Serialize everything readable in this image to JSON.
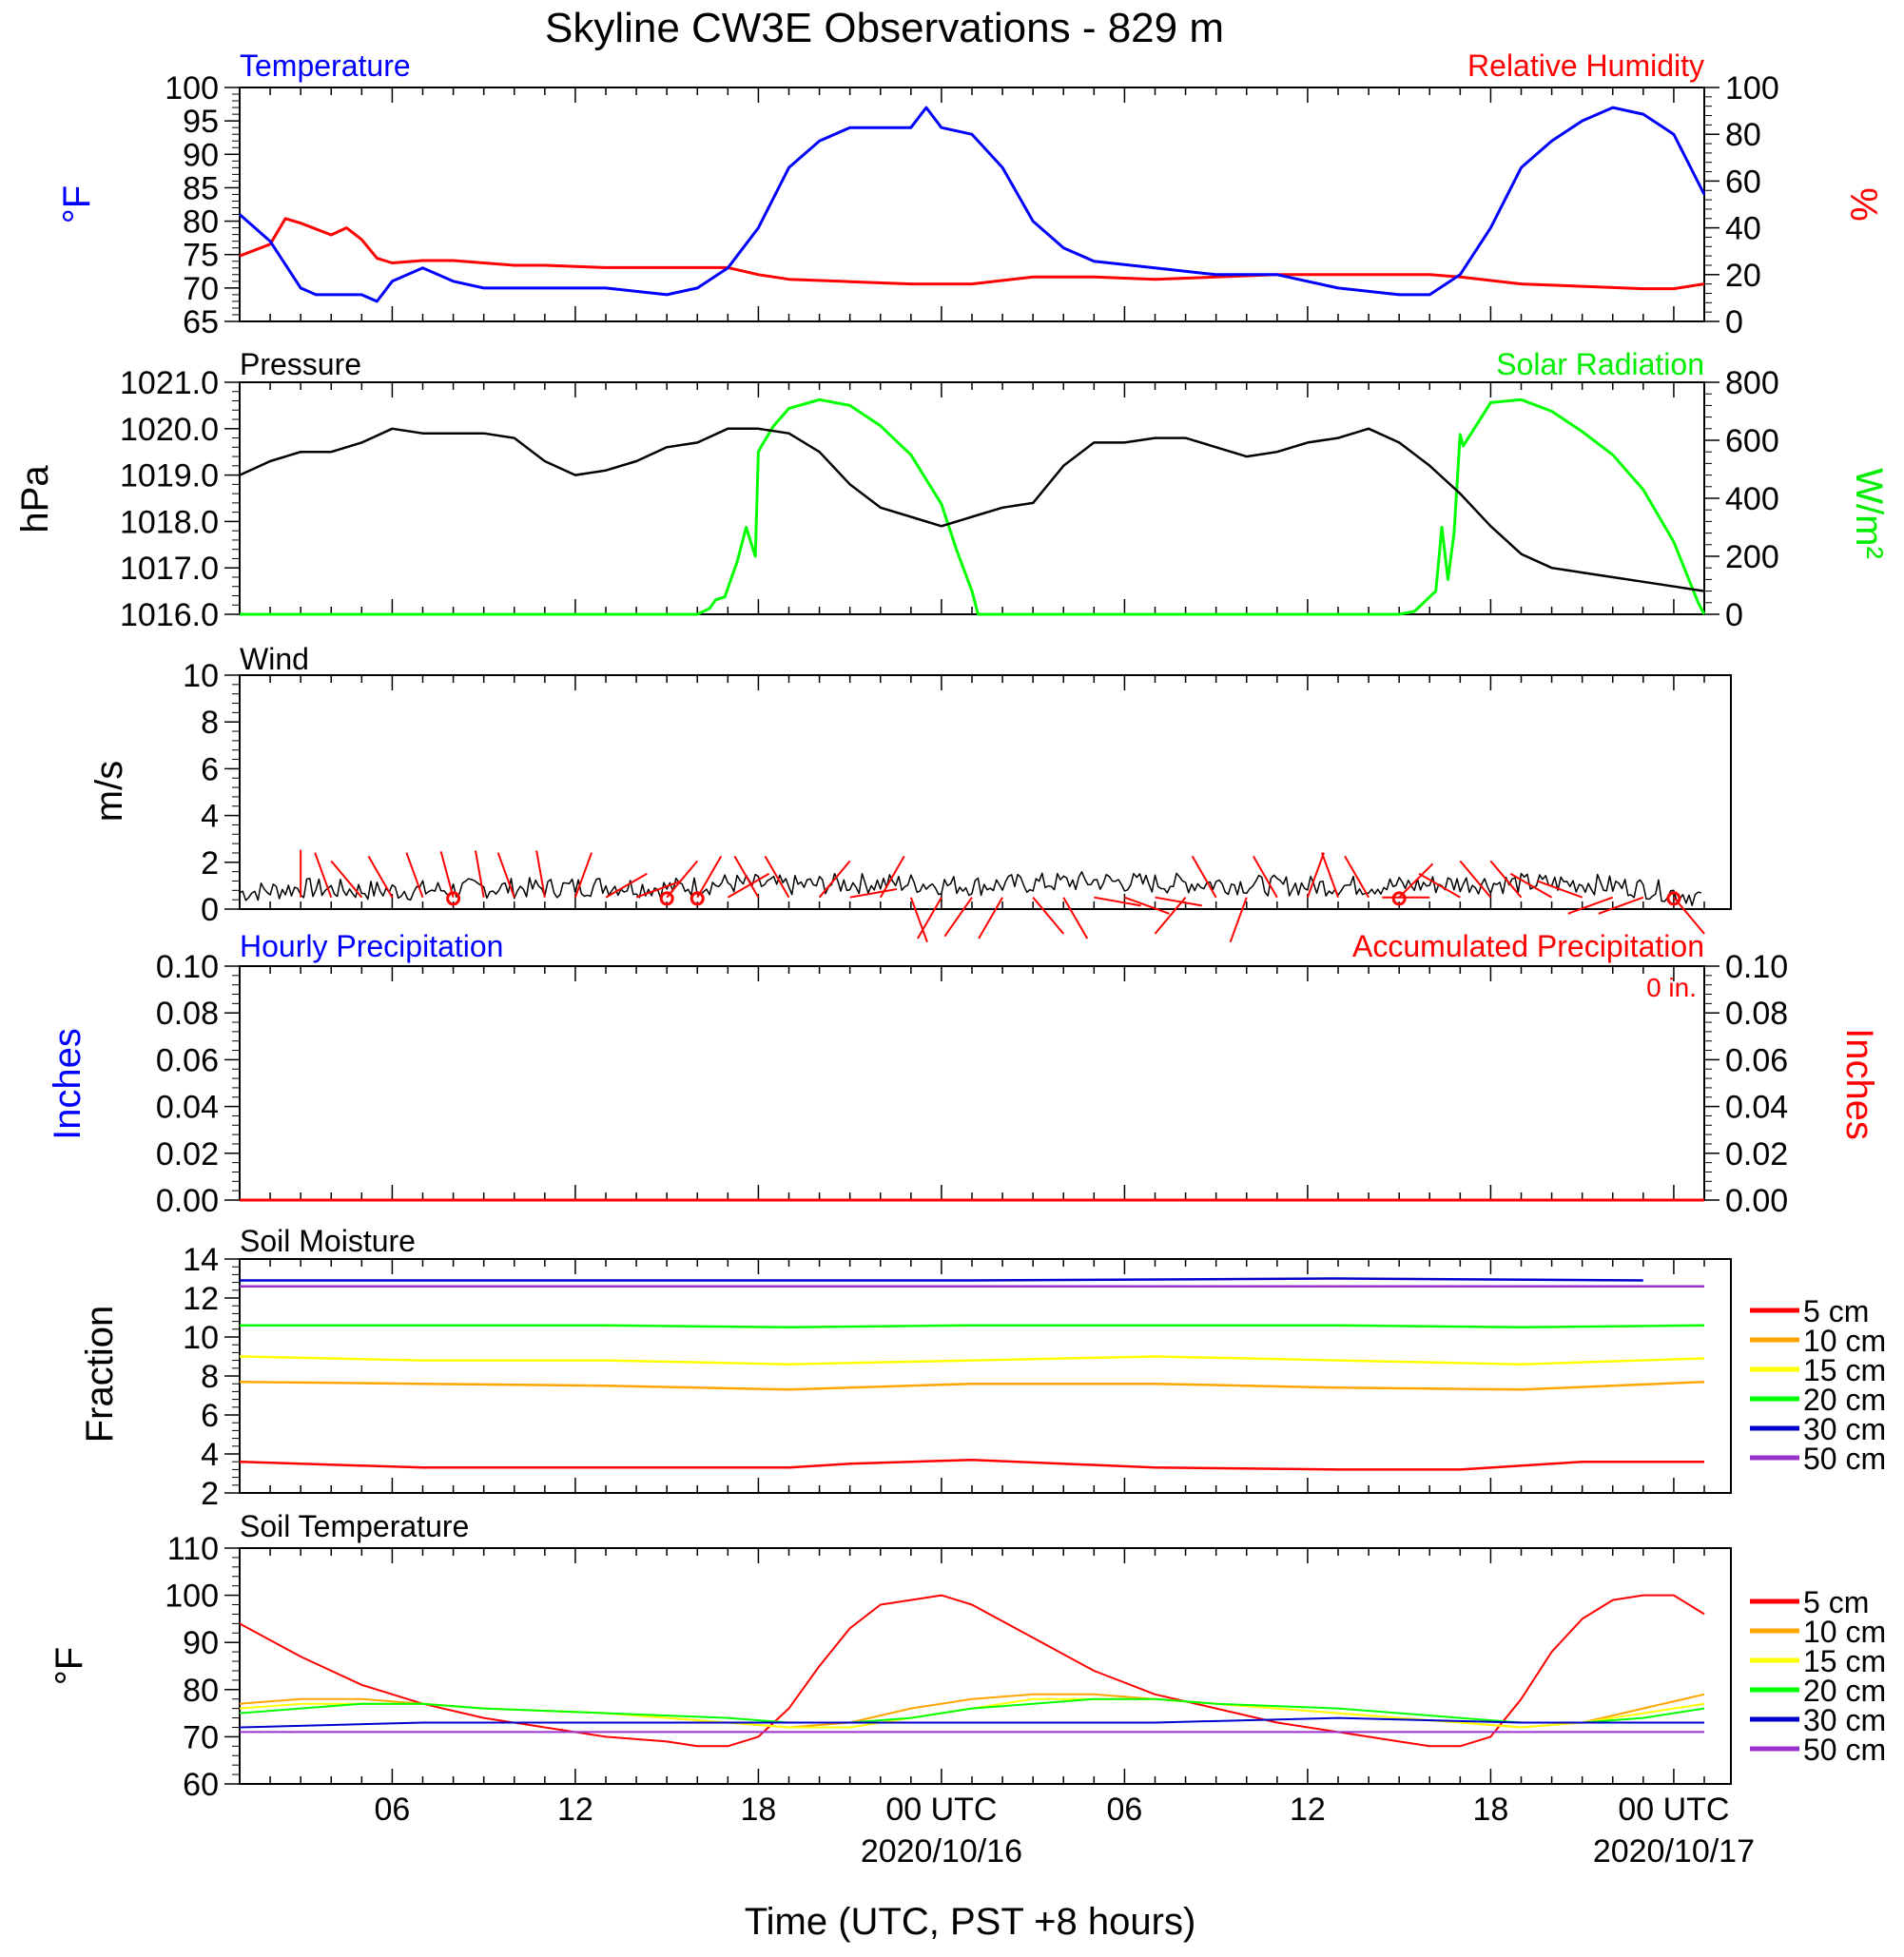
{
  "title": "Skyline CW3E Observations - 829 m",
  "x_axis": {
    "tick_labels": [
      "06",
      "12",
      "18",
      "00 UTC",
      "06",
      "12",
      "18",
      "00 UTC"
    ],
    "date_labels": [
      "2020/10/16",
      "2020/10/17"
    ],
    "label": "Time (UTC, PST +8 hours)"
  },
  "colors": {
    "temperature": "#0000ff",
    "humidity": "#ff0000",
    "pressure": "#000000",
    "solar": "#00ff00",
    "wind_speed": "#000000",
    "wind_barb": "#ff0000",
    "5 cm": "#ff0000",
    "10 cm": "#ffa500",
    "15 cm": "#ffff00",
    "20 cm": "#00ff00",
    "30 cm": "#0000cd",
    "50 cm": "#9932cc"
  },
  "panels": {
    "temp": {
      "left_title": "Temperature",
      "right_title": "Relative Humidity",
      "left_unit": "°F",
      "right_unit": "%",
      "left_ticks": [
        "100",
        "95",
        "90",
        "85",
        "80",
        "75",
        "70",
        "65"
      ],
      "right_ticks": [
        "100",
        "80",
        "60",
        "40",
        "20",
        "0"
      ]
    },
    "press": {
      "left_title": "Pressure",
      "right_title": "Solar Radiation",
      "left_unit": "hPa",
      "right_unit": "W/m²",
      "left_ticks": [
        "1021.0",
        "1020.0",
        "1019.0",
        "1018.0",
        "1017.0",
        "1016.0"
      ],
      "right_ticks": [
        "800",
        "600",
        "400",
        "200",
        "0"
      ]
    },
    "wind": {
      "left_title": "Wind",
      "left_unit": "m/s",
      "left_ticks": [
        "10",
        "8",
        "6",
        "4",
        "2",
        "0"
      ]
    },
    "precip": {
      "left_title": "Hourly Precipitation",
      "right_title": "Accumulated Precipitation",
      "total": "0 in.",
      "left_unit": "Inches",
      "right_unit": "Inches",
      "left_ticks": [
        "0.10",
        "0.08",
        "0.06",
        "0.04",
        "0.02",
        "0.00"
      ],
      "right_ticks": [
        "0.10",
        "0.08",
        "0.06",
        "0.04",
        "0.02",
        "0.00"
      ]
    },
    "soilm": {
      "left_title": "Soil Moisture",
      "left_unit": "Fraction",
      "left_ticks": [
        "14",
        "12",
        "10",
        "8",
        "6",
        "4",
        "2"
      ]
    },
    "soilt": {
      "left_title": "Soil Temperature",
      "left_unit": "°F",
      "left_ticks": [
        "110",
        "100",
        "90",
        "80",
        "70",
        "60"
      ]
    }
  },
  "legend": [
    "5 cm",
    "10 cm",
    "15 cm",
    "20 cm",
    "30 cm",
    "50 cm"
  ],
  "chart_data": [
    {
      "type": "line",
      "panel": "temp",
      "x_hours_since_2020-10-15T01UTC_note": "hours",
      "x_range": [
        0,
        48
      ],
      "ylim": [
        65,
        100
      ],
      "y2lim": [
        0,
        100
      ],
      "series": [
        {
          "name": "Temperature",
          "axis": "left",
          "x": [
            0,
            1,
            2,
            2.5,
            3,
            4,
            4.5,
            5,
            6,
            7,
            8,
            9,
            10,
            12,
            14,
            15,
            16,
            17,
            18,
            19,
            20,
            21,
            22,
            22.5,
            23,
            24,
            25,
            26,
            27,
            28,
            30,
            32,
            34,
            36,
            38,
            39,
            40,
            41,
            42,
            43,
            44,
            45,
            46,
            47,
            48
          ],
          "y": [
            81,
            77,
            70,
            69,
            69,
            69,
            68,
            71,
            73,
            71,
            70,
            70,
            70,
            70,
            69,
            70,
            73,
            79,
            88,
            92,
            94,
            94,
            94,
            97,
            94,
            93,
            88,
            80,
            76,
            74,
            73,
            72,
            72,
            70,
            69,
            69,
            72,
            79,
            88,
            92,
            95,
            97,
            96,
            93,
            84
          ]
        },
        {
          "name": "Relative Humidity",
          "axis": "right",
          "x": [
            0,
            1,
            1.5,
            2,
            3,
            3.5,
            4,
            4.5,
            5,
            6,
            7,
            8,
            9,
            10,
            12,
            14,
            15,
            16,
            17,
            18,
            20,
            22,
            24,
            26,
            28,
            30,
            32,
            34,
            36,
            38,
            39,
            40,
            42,
            44,
            46,
            47,
            48
          ],
          "y": [
            28,
            33,
            44,
            42,
            37,
            40,
            35,
            27,
            25,
            26,
            26,
            25,
            24,
            24,
            23,
            23,
            23,
            23,
            20,
            18,
            17,
            16,
            16,
            19,
            19,
            18,
            19,
            20,
            20,
            20,
            20,
            19,
            16,
            15,
            14,
            14,
            16
          ]
        }
      ]
    },
    {
      "type": "line",
      "panel": "press",
      "x_range": [
        0,
        48
      ],
      "ylim": [
        1016.0,
        1021.0
      ],
      "y2lim": [
        0,
        800
      ],
      "series": [
        {
          "name": "Pressure",
          "axis": "left",
          "x": [
            0,
            1,
            2,
            3,
            4,
            5,
            6,
            7,
            8,
            9,
            10,
            11,
            12,
            13,
            14,
            15,
            16,
            17,
            18,
            19,
            20,
            21,
            22,
            23,
            24,
            25,
            26,
            27,
            28,
            29,
            30,
            31,
            32,
            33,
            34,
            35,
            36,
            37,
            38,
            39,
            40,
            41,
            42,
            43,
            44,
            45,
            46,
            47,
            48
          ],
          "y": [
            1019.0,
            1019.3,
            1019.5,
            1019.5,
            1019.7,
            1020.0,
            1019.9,
            1019.9,
            1019.9,
            1019.8,
            1019.3,
            1019.0,
            1019.1,
            1019.3,
            1019.6,
            1019.7,
            1020.0,
            1020.0,
            1019.9,
            1019.5,
            1018.8,
            1018.3,
            1018.1,
            1017.9,
            1018.1,
            1018.3,
            1018.4,
            1019.2,
            1019.7,
            1019.7,
            1019.8,
            1019.8,
            1019.6,
            1019.4,
            1019.5,
            1019.7,
            1019.8,
            1020.0,
            1019.7,
            1019.2,
            1018.6,
            1017.9,
            1017.3,
            1017.0,
            1016.9,
            1016.8,
            1016.7,
            1016.6,
            1016.5
          ]
        },
        {
          "name": "Solar Radiation",
          "axis": "right",
          "x": [
            0,
            8,
            12,
            14,
            15,
            15.4,
            15.6,
            15.9,
            16.1,
            16.3,
            16.6,
            16.9,
            17,
            17.1,
            17.5,
            18,
            19,
            20,
            21,
            22,
            23,
            23.5,
            24,
            24.2,
            25,
            28,
            32,
            36,
            38,
            38.5,
            39.2,
            39.4,
            39.6,
            39.8,
            40,
            40.1,
            41,
            42,
            43,
            44,
            45,
            46,
            47,
            47.8,
            48
          ],
          "y": [
            0,
            0,
            0,
            0,
            0,
            20,
            50,
            60,
            120,
            180,
            300,
            200,
            560,
            580,
            650,
            710,
            740,
            720,
            650,
            550,
            380,
            220,
            80,
            0,
            0,
            0,
            0,
            0,
            0,
            10,
            80,
            300,
            120,
            280,
            620,
            580,
            730,
            740,
            700,
            630,
            550,
            430,
            250,
            40,
            0
          ]
        }
      ]
    },
    {
      "type": "line",
      "panel": "wind",
      "x_range": [
        0,
        48
      ],
      "ylim": [
        0,
        10
      ],
      "series": [
        {
          "name": "Wind speed",
          "x": [
            0,
            2,
            4,
            6,
            8,
            10,
            12,
            14,
            16,
            18,
            20,
            22,
            24,
            26,
            28,
            30,
            32,
            34,
            36,
            38,
            40,
            42,
            44,
            46,
            48
          ],
          "y": [
            0.7,
            0.9,
            0.8,
            0.8,
            0.9,
            0.9,
            1.0,
            0.9,
            1.1,
            1.0,
            1.1,
            1.1,
            1.0,
            1.1,
            1.2,
            1.1,
            1.1,
            1.0,
            1.0,
            1.0,
            1.1,
            1.1,
            1.1,
            0.9,
            0.5
          ]
        }
      ],
      "barbs": {
        "x": [
          2,
          3,
          4,
          5,
          6,
          7,
          8,
          9,
          10,
          11,
          12,
          13,
          14,
          15,
          16,
          17,
          18,
          19,
          20,
          21,
          22,
          23,
          24,
          25,
          26,
          27,
          28,
          29,
          30,
          31,
          32,
          33,
          34,
          35,
          36,
          37,
          38,
          39,
          40,
          41,
          42,
          43,
          44,
          45,
          46,
          47
        ],
        "dir_deg": [
          0,
          340,
          320,
          330,
          340,
          345,
          350,
          340,
          350,
          20,
          60,
          70,
          40,
          30,
          60,
          330,
          330,
          40,
          80,
          30,
          160,
          210,
          215,
          210,
          140,
          150,
          100,
          110,
          100,
          220,
          330,
          200,
          330,
          20,
          340,
          330,
          45,
          270,
          300,
          320,
          320,
          300,
          290,
          250,
          250,
          140
        ],
        "calm_x": [
          7,
          14,
          15,
          38,
          47
        ]
      }
    },
    {
      "type": "line",
      "panel": "precip",
      "x_range": [
        0,
        48
      ],
      "ylim": [
        0.0,
        0.1
      ],
      "series": [
        {
          "name": "Hourly Precipitation",
          "x": [
            0,
            48
          ],
          "y": [
            0.0,
            0.0
          ]
        },
        {
          "name": "Accumulated Precipitation",
          "x": [
            0,
            48
          ],
          "y": [
            0.0,
            0.0
          ]
        }
      ]
    },
    {
      "type": "line",
      "panel": "soilm",
      "x_range": [
        0,
        48
      ],
      "ylim": [
        2,
        14
      ],
      "series": [
        {
          "name": "5 cm",
          "x": [
            0,
            6,
            12,
            18,
            20,
            24,
            30,
            36,
            40,
            44,
            48
          ],
          "y": [
            3.6,
            3.3,
            3.3,
            3.3,
            3.5,
            3.7,
            3.3,
            3.2,
            3.2,
            3.6,
            3.6
          ]
        },
        {
          "name": "10 cm",
          "x": [
            0,
            6,
            12,
            18,
            24,
            30,
            36,
            42,
            48
          ],
          "y": [
            7.7,
            7.6,
            7.5,
            7.3,
            7.6,
            7.6,
            7.4,
            7.3,
            7.7
          ]
        },
        {
          "name": "15 cm",
          "x": [
            0,
            6,
            12,
            18,
            24,
            30,
            36,
            42,
            48
          ],
          "y": [
            9.0,
            8.8,
            8.8,
            8.6,
            8.8,
            9.0,
            8.8,
            8.6,
            8.9
          ]
        },
        {
          "name": "20 cm",
          "x": [
            0,
            6,
            12,
            18,
            24,
            30,
            36,
            42,
            48
          ],
          "y": [
            10.6,
            10.6,
            10.6,
            10.5,
            10.6,
            10.6,
            10.6,
            10.5,
            10.6
          ]
        },
        {
          "name": "30 cm",
          "x": [
            0,
            12,
            24,
            36,
            46
          ],
          "y": [
            12.9,
            12.9,
            12.9,
            13.0,
            12.9
          ]
        },
        {
          "name": "50 cm",
          "x": [
            0,
            12,
            24,
            36,
            48
          ],
          "y": [
            12.6,
            12.6,
            12.6,
            12.6,
            12.6
          ]
        }
      ]
    },
    {
      "type": "line",
      "panel": "soilt",
      "x_range": [
        0,
        48
      ],
      "ylim": [
        60,
        110
      ],
      "series": [
        {
          "name": "5 cm",
          "x": [
            0,
            2,
            4,
            6,
            8,
            10,
            12,
            14,
            15,
            16,
            17,
            18,
            19,
            20,
            21,
            22,
            23,
            24,
            26,
            28,
            30,
            32,
            34,
            36,
            38,
            39,
            40,
            41,
            42,
            43,
            44,
            45,
            46,
            47,
            48
          ],
          "y": [
            94,
            87,
            81,
            77,
            74,
            72,
            70,
            69,
            68,
            68,
            70,
            76,
            85,
            93,
            98,
            99,
            100,
            98,
            91,
            84,
            79,
            76,
            73,
            71,
            69,
            68,
            68,
            70,
            78,
            88,
            95,
            99,
            100,
            100,
            96
          ]
        },
        {
          "name": "10 cm",
          "x": [
            0,
            2,
            4,
            6,
            8,
            12,
            16,
            18,
            20,
            22,
            24,
            26,
            28,
            30,
            32,
            36,
            40,
            42,
            44,
            46,
            48
          ],
          "y": [
            77,
            78,
            78,
            77,
            76,
            75,
            73,
            72,
            73,
            76,
            78,
            79,
            79,
            78,
            77,
            75,
            73,
            72,
            73,
            76,
            79
          ]
        },
        {
          "name": "15 cm",
          "x": [
            0,
            2,
            4,
            6,
            8,
            12,
            16,
            18,
            20,
            22,
            24,
            26,
            28,
            30,
            32,
            36,
            40,
            42,
            44,
            46,
            48
          ],
          "y": [
            76,
            77,
            77,
            77,
            76,
            75,
            73,
            72,
            72,
            74,
            76,
            78,
            78,
            78,
            77,
            75,
            73,
            72,
            73,
            75,
            77
          ]
        },
        {
          "name": "20 cm",
          "x": [
            0,
            2,
            4,
            6,
            8,
            12,
            16,
            18,
            20,
            22,
            24,
            26,
            28,
            30,
            32,
            36,
            40,
            42,
            44,
            46,
            48
          ],
          "y": [
            75,
            76,
            77,
            77,
            76,
            75,
            74,
            73,
            73,
            74,
            76,
            77,
            78,
            78,
            77,
            76,
            74,
            73,
            73,
            74,
            76
          ]
        },
        {
          "name": "30 cm",
          "x": [
            0,
            6,
            12,
            18,
            24,
            30,
            36,
            42,
            48
          ],
          "y": [
            72,
            73,
            73,
            73,
            73,
            73,
            74,
            73,
            73
          ]
        },
        {
          "name": "50 cm",
          "x": [
            0,
            12,
            24,
            36,
            48
          ],
          "y": [
            71,
            71,
            71,
            71,
            71
          ]
        }
      ]
    }
  ]
}
